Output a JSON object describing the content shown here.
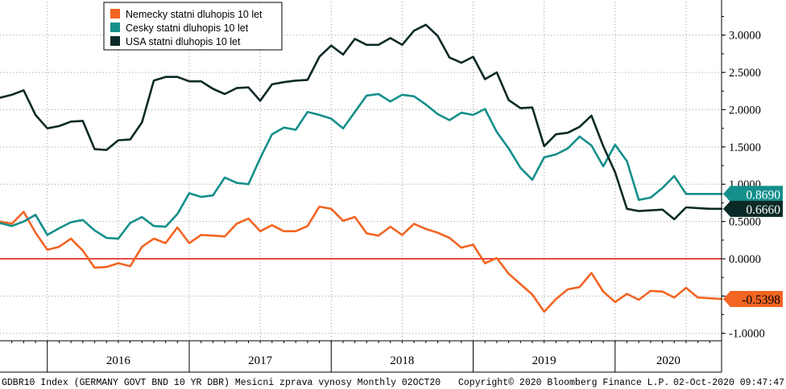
{
  "chart_data": {
    "type": "line",
    "ylim": [
      -1.1,
      3.45
    ],
    "yticks": [
      -1.0,
      -0.5,
      0.0,
      0.5,
      1.0,
      1.5,
      2.0,
      2.5,
      3.0
    ],
    "ytick_labels": [
      "-1.0000",
      "-0.5000",
      "0.0000",
      "0.5000",
      "1.0000",
      "1.5000",
      "2.0000",
      "2.5000",
      "3.0000"
    ],
    "x_start": "2015-09",
    "x_end": "2020-10",
    "year_labels": [
      {
        "label": "2016",
        "year": 2016
      },
      {
        "label": "2017",
        "year": 2017
      },
      {
        "label": "2018",
        "year": 2018
      },
      {
        "label": "2019",
        "year": 2019
      },
      {
        "label": "2020",
        "year": 2020
      }
    ],
    "reference_line": {
      "value": 0,
      "color": "#e4201c"
    },
    "legend_position": "top-left",
    "grid": true,
    "series": [
      {
        "name": "Nemecky statni dluhopis 10 let",
        "color": "#f26522",
        "last_label": "-0.5398",
        "x": [
          "2015-09",
          "2015-10",
          "2015-11",
          "2015-12",
          "2016-01",
          "2016-02",
          "2016-03",
          "2016-04",
          "2016-05",
          "2016-06",
          "2016-07",
          "2016-08",
          "2016-09",
          "2016-10",
          "2016-11",
          "2016-12",
          "2017-01",
          "2017-02",
          "2017-03",
          "2017-04",
          "2017-05",
          "2017-06",
          "2017-07",
          "2017-08",
          "2017-09",
          "2017-10",
          "2017-11",
          "2017-12",
          "2018-01",
          "2018-02",
          "2018-03",
          "2018-04",
          "2018-05",
          "2018-06",
          "2018-07",
          "2018-08",
          "2018-09",
          "2018-10",
          "2018-11",
          "2018-12",
          "2019-01",
          "2019-02",
          "2019-03",
          "2019-04",
          "2019-05",
          "2019-06",
          "2019-07",
          "2019-08",
          "2019-09",
          "2019-10",
          "2019-11",
          "2019-12",
          "2020-01",
          "2020-02",
          "2020-03",
          "2020-04",
          "2020-05",
          "2020-06",
          "2020-07",
          "2020-08",
          "2020-09",
          "2020-10"
        ],
        "values": [
          0.5,
          0.47,
          0.63,
          0.35,
          0.12,
          0.16,
          0.27,
          0.11,
          -0.12,
          -0.11,
          -0.06,
          -0.1,
          0.16,
          0.27,
          0.21,
          0.42,
          0.21,
          0.32,
          0.31,
          0.3,
          0.47,
          0.54,
          0.37,
          0.45,
          0.37,
          0.37,
          0.44,
          0.7,
          0.67,
          0.51,
          0.56,
          0.34,
          0.31,
          0.43,
          0.32,
          0.47,
          0.4,
          0.35,
          0.28,
          0.15,
          0.19,
          -0.06,
          0.01,
          -0.2,
          -0.34,
          -0.48,
          -0.71,
          -0.54,
          -0.41,
          -0.38,
          -0.19,
          -0.44,
          -0.58,
          -0.47,
          -0.55,
          -0.43,
          -0.44,
          -0.52,
          -0.39,
          -0.52,
          -0.53,
          -0.54
        ]
      },
      {
        "name": "Cesky statni dluhopis 10 let",
        "color": "#148f8b",
        "last_label": "0.8690",
        "x": [
          "2015-09",
          "2015-10",
          "2015-11",
          "2015-12",
          "2016-01",
          "2016-02",
          "2016-03",
          "2016-04",
          "2016-05",
          "2016-06",
          "2016-07",
          "2016-08",
          "2016-09",
          "2016-10",
          "2016-11",
          "2016-12",
          "2017-01",
          "2017-02",
          "2017-03",
          "2017-04",
          "2017-05",
          "2017-06",
          "2017-07",
          "2017-08",
          "2017-09",
          "2017-10",
          "2017-11",
          "2017-12",
          "2018-01",
          "2018-02",
          "2018-03",
          "2018-04",
          "2018-05",
          "2018-06",
          "2018-07",
          "2018-08",
          "2018-09",
          "2018-10",
          "2018-11",
          "2018-12",
          "2019-01",
          "2019-02",
          "2019-03",
          "2019-04",
          "2019-05",
          "2019-06",
          "2019-07",
          "2019-08",
          "2019-09",
          "2019-10",
          "2019-11",
          "2019-12",
          "2020-01",
          "2020-02",
          "2020-03",
          "2020-04",
          "2020-05",
          "2020-06",
          "2020-07",
          "2020-08",
          "2020-09",
          "2020-10"
        ],
        "values": [
          0.48,
          0.44,
          0.5,
          0.59,
          0.32,
          0.41,
          0.49,
          0.52,
          0.38,
          0.28,
          0.27,
          0.48,
          0.56,
          0.44,
          0.43,
          0.6,
          0.88,
          0.83,
          0.85,
          1.09,
          1.02,
          1.0,
          1.35,
          1.67,
          1.76,
          1.73,
          1.97,
          1.93,
          1.88,
          1.75,
          1.97,
          2.19,
          2.21,
          2.11,
          2.2,
          2.18,
          2.07,
          1.94,
          1.86,
          1.96,
          1.93,
          2.01,
          1.7,
          1.48,
          1.22,
          1.06,
          1.36,
          1.4,
          1.48,
          1.64,
          1.52,
          1.24,
          1.53,
          1.31,
          0.79,
          0.82,
          0.95,
          1.11,
          0.87,
          0.87,
          0.87,
          0.87
        ]
      },
      {
        "name": "USA statni dluhopis 10 let",
        "color": "#0b2a27",
        "last_label": "0.6660",
        "x": [
          "2015-09",
          "2015-10",
          "2015-11",
          "2015-12",
          "2016-01",
          "2016-02",
          "2016-03",
          "2016-04",
          "2016-05",
          "2016-06",
          "2016-07",
          "2016-08",
          "2016-09",
          "2016-10",
          "2016-11",
          "2016-12",
          "2017-01",
          "2017-02",
          "2017-03",
          "2017-04",
          "2017-05",
          "2017-06",
          "2017-07",
          "2017-08",
          "2017-09",
          "2017-10",
          "2017-11",
          "2017-12",
          "2018-01",
          "2018-02",
          "2018-03",
          "2018-04",
          "2018-05",
          "2018-06",
          "2018-07",
          "2018-08",
          "2018-09",
          "2018-10",
          "2018-11",
          "2018-12",
          "2019-01",
          "2019-02",
          "2019-03",
          "2019-04",
          "2019-05",
          "2019-06",
          "2019-07",
          "2019-08",
          "2019-09",
          "2019-10",
          "2019-11",
          "2019-12",
          "2020-01",
          "2020-02",
          "2020-03",
          "2020-04",
          "2020-05",
          "2020-06",
          "2020-07",
          "2020-08",
          "2020-09",
          "2020-10"
        ],
        "values": [
          2.16,
          2.2,
          2.26,
          1.93,
          1.75,
          1.78,
          1.84,
          1.85,
          1.47,
          1.46,
          1.59,
          1.6,
          1.83,
          2.39,
          2.44,
          2.44,
          2.38,
          2.38,
          2.28,
          2.21,
          2.29,
          2.3,
          2.12,
          2.34,
          2.37,
          2.39,
          2.4,
          2.71,
          2.86,
          2.74,
          2.95,
          2.87,
          2.87,
          2.96,
          2.87,
          3.06,
          3.14,
          2.99,
          2.7,
          2.63,
          2.71,
          2.41,
          2.5,
          2.13,
          2.02,
          2.03,
          1.51,
          1.67,
          1.69,
          1.77,
          1.92,
          1.51,
          1.16,
          0.67,
          0.64,
          0.65,
          0.66,
          0.53,
          0.69,
          0.68,
          0.67,
          0.67
        ]
      }
    ]
  },
  "footer": {
    "source_text": "GDBR10 Index (GERMANY GOVT BND 10 YR DBR) Mesicni zprava vynosy  Monthly 02OCT20",
    "copyright": "Copyright© 2020 Bloomberg Finance L.P.",
    "timestamp": "02-Oct-2020 09:47:47"
  }
}
